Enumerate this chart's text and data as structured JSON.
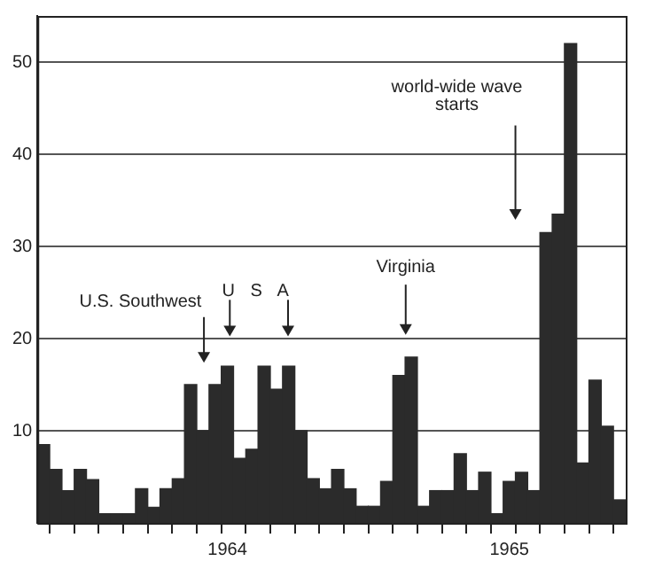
{
  "chart_data": {
    "type": "bar",
    "categories": [
      null,
      null,
      null,
      null,
      null,
      null,
      null,
      null,
      null,
      null,
      null,
      null,
      null,
      null,
      null,
      "1964",
      null,
      null,
      null,
      null,
      null,
      null,
      null,
      null,
      null,
      null,
      null,
      null,
      null,
      null,
      null,
      null,
      null,
      null,
      null,
      null,
      null,
      null,
      "1965",
      null,
      null,
      null,
      null,
      null,
      null,
      null,
      null,
      null
    ],
    "values": [
      8.5,
      5.8,
      3.5,
      5.8,
      4.7,
      1,
      1,
      1,
      3.7,
      1.7,
      3.7,
      4.8,
      15,
      10,
      15,
      17,
      7,
      8,
      17,
      14.5,
      17,
      10,
      4.8,
      3.7,
      5.8,
      3.7,
      1.8,
      1.8,
      4.5,
      16,
      18,
      1.8,
      3.5,
      3.5,
      7.5,
      3.5,
      5.5,
      1,
      4.5,
      5.5,
      3.5,
      31.5,
      33.5,
      52,
      6.5,
      15.5,
      10.5,
      2.5
    ],
    "color": "#2b2b2b",
    "ylim": [
      0,
      55
    ],
    "yticks": [
      10,
      20,
      30,
      40,
      50
    ],
    "grid": "y",
    "annotations": [
      "U.S. Southwest",
      "U S A",
      "Virginia",
      "world-wide wave starts"
    ]
  }
}
